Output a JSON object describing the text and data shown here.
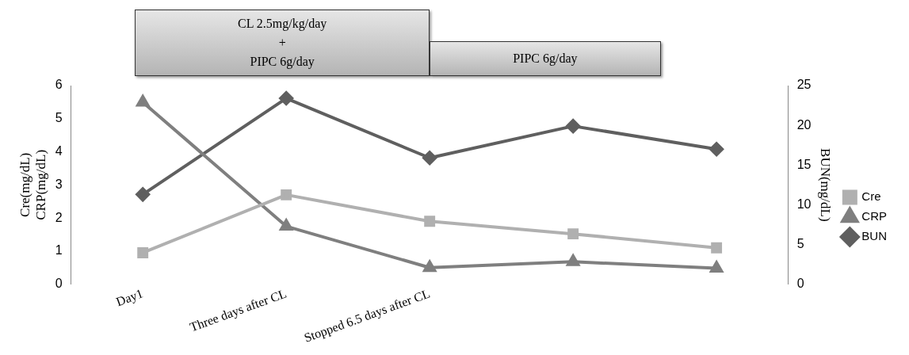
{
  "chart_data": {
    "type": "line",
    "categories": [
      "Day1",
      "Three days after CL",
      "Stopped 6.5 days after CL",
      null,
      null
    ],
    "series": [
      {
        "name": "Cre",
        "color": "#b0b0b0",
        "marker": "square",
        "values": [
          0.95,
          2.7,
          1.9,
          1.52,
          1.1
        ]
      },
      {
        "name": "CRP",
        "color": "#7f7f7f",
        "marker": "triangle",
        "values": [
          5.5,
          1.75,
          0.5,
          0.68,
          0.48
        ]
      },
      {
        "name": "BUN",
        "color": "#5f5f5f",
        "marker": "diamond",
        "axis": "y2",
        "values": [
          11.3,
          23.4,
          15.9,
          19.9,
          17.0
        ]
      }
    ],
    "ylabel": "Cre(mg/dL)\nCRP(mg/dL)",
    "y2label": "BUN(mg/dL)",
    "ylim": [
      0,
      6
    ],
    "yticks": [
      0,
      1,
      2,
      3,
      4,
      5,
      6
    ],
    "y2lim": [
      0,
      25
    ],
    "y2ticks": [
      0,
      5,
      10,
      15,
      20,
      25
    ],
    "grid": false,
    "legend": "right",
    "line_style": "solid",
    "annotations": [
      "CL 2.5mg/kg/day\n+\nPIPC 6g/day",
      "PIPC 6g/day"
    ]
  }
}
